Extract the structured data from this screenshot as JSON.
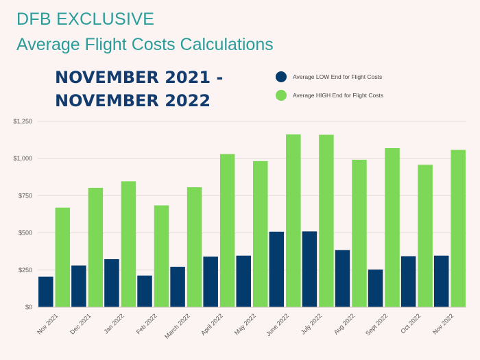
{
  "header": {
    "kicker": "DFB EXCLUSIVE",
    "subtitle": "Average Flight Costs Calculations",
    "headline": "NOVEMBER 2021 - NOVEMBER 2022"
  },
  "colors": {
    "low": "#033b6c",
    "high": "#7dd857",
    "grid": "#e6dcda"
  },
  "chart_data": {
    "type": "bar",
    "title": "Average Flight Costs Calculations",
    "xlabel": "",
    "ylabel": "",
    "ylim": [
      0,
      1250
    ],
    "yticks": [
      "$0",
      "$250",
      "$500",
      "$750",
      "$1,000",
      "$1,250"
    ],
    "grid": true,
    "legend_position": "top-right",
    "categories": [
      "Nov 2021",
      "Dec 2021",
      "Jan 2022",
      "Feb 2022",
      "March 2022",
      "April 2022",
      "May 2022",
      "June 2022",
      "July 2022",
      "Aug 2022",
      "Sept 2022",
      "Oct 2022",
      "Nov 2022"
    ],
    "series": [
      {
        "name": "Average LOW End for Flight Costs",
        "values": [
          205,
          280,
          323,
          213,
          272,
          340,
          347,
          508,
          510,
          384,
          253,
          343,
          347
        ]
      },
      {
        "name": "Average HIGH End for Flight Costs",
        "values": [
          670,
          803,
          847,
          685,
          807,
          1030,
          983,
          1162,
          1160,
          992,
          1070,
          958,
          1058
        ]
      }
    ]
  }
}
